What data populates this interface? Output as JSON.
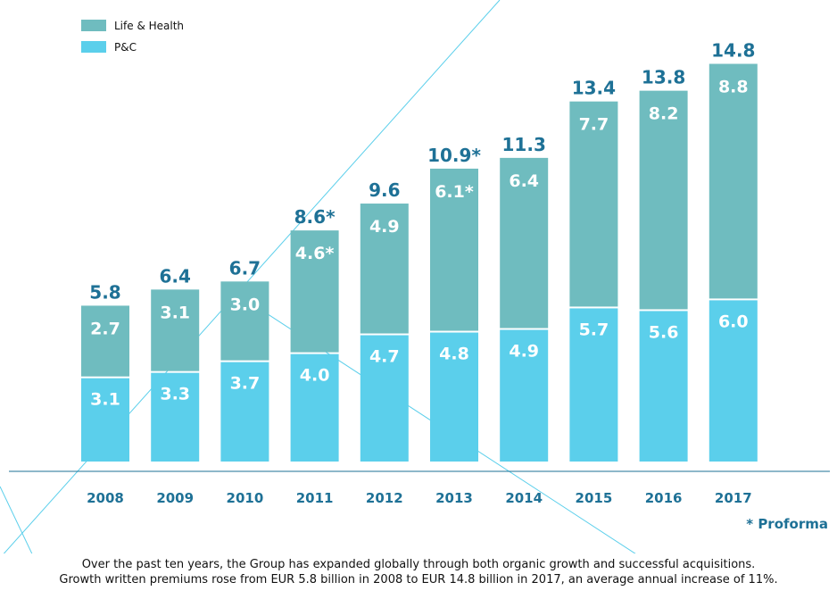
{
  "chart_data": {
    "type": "bar",
    "stacked": true,
    "categories": [
      "2008",
      "2009",
      "2010",
      "2011",
      "2012",
      "2013",
      "2014",
      "2015",
      "2016",
      "2017"
    ],
    "series": [
      {
        "name": "P&C",
        "color": "#5bcfeb",
        "values": [
          3.1,
          3.3,
          3.7,
          4.0,
          4.7,
          4.8,
          4.9,
          5.7,
          5.6,
          6.0
        ],
        "labels": [
          "3.1",
          "3.3",
          "3.7",
          "4.0",
          "4.7",
          "4.8",
          "4.9",
          "5.7",
          "5.6",
          "6.0"
        ]
      },
      {
        "name": "Life & Health",
        "color": "#6fbcbf",
        "values": [
          2.7,
          3.1,
          3.0,
          4.6,
          4.9,
          6.1,
          6.4,
          7.7,
          8.2,
          8.8
        ],
        "labels": [
          "2.7",
          "3.1",
          "3.0",
          "4.6*",
          "4.9",
          "6.1*",
          "6.4",
          "7.7",
          "8.2",
          "8.8"
        ]
      }
    ],
    "totals": [
      5.8,
      6.4,
      6.7,
      8.6,
      9.6,
      10.9,
      11.3,
      13.4,
      13.8,
      14.8
    ],
    "total_labels": [
      "5.8",
      "6.4",
      "6.7",
      "8.6*",
      "9.6",
      "10.9*",
      "11.3",
      "13.4",
      "13.8",
      "14.8"
    ],
    "legend_position": "top-left",
    "grid": false,
    "colors": {
      "total_label": "#1e7196",
      "year_label": "#1e7196",
      "baseline": "#1e7196",
      "bar_label": "#ffffff",
      "decor_line": "#5bcfeb"
    }
  },
  "footnote": "* Proforma",
  "caption": {
    "line1": "Over the past ten years, the Group has expanded globally through both organic growth and successful acquisitions.",
    "line2": "Growth written premiums rose from EUR 5.8 billion in 2008 to EUR 14.8 billion in 2017, an average annual increase of 11%."
  }
}
